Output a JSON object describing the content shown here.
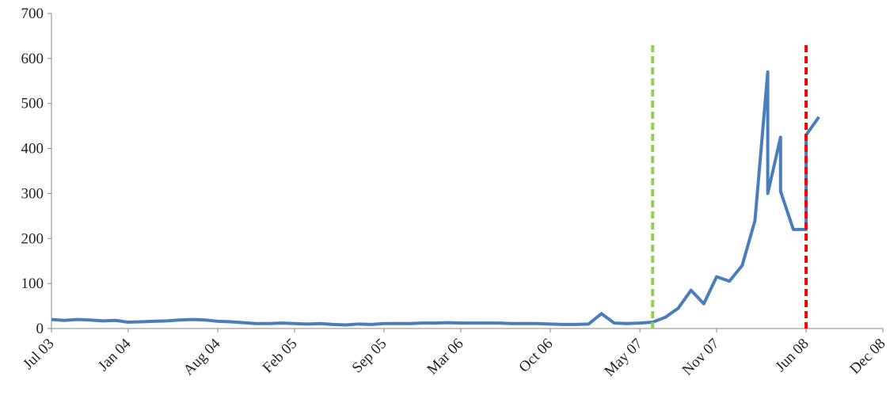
{
  "chart_data": {
    "type": "line",
    "x": [
      "2003-07",
      "2003-08",
      "2003-09",
      "2003-10",
      "2003-11",
      "2003-12",
      "2004-01",
      "2004-02",
      "2004-03",
      "2004-04",
      "2004-05",
      "2004-06",
      "2004-07",
      "2004-08",
      "2004-09",
      "2004-10",
      "2004-11",
      "2004-12",
      "2005-01",
      "2005-02",
      "2005-03",
      "2005-04",
      "2005-05",
      "2005-06",
      "2005-07",
      "2005-08",
      "2005-09",
      "2005-10",
      "2005-11",
      "2005-12",
      "2006-01",
      "2006-02",
      "2006-03",
      "2006-04",
      "2006-05",
      "2006-06",
      "2006-07",
      "2006-08",
      "2006-09",
      "2006-10",
      "2006-11",
      "2006-12",
      "2007-01",
      "2007-02",
      "2007-03",
      "2007-04",
      "2007-05",
      "2007-06",
      "2007-07",
      "2007-08",
      "2007-09",
      "2007-10",
      "2007-11",
      "2007-12",
      "2008-01",
      "2008-02",
      "2008-03",
      "2008-03",
      "2008-04",
      "2008-04",
      "2008-05",
      "2008-06",
      "2008-06",
      "2008-07"
    ],
    "series": [
      {
        "color": "#4a7ebb",
        "values": [
          20,
          18,
          20,
          19,
          17,
          18,
          14,
          15,
          16,
          17,
          19,
          20,
          19,
          16,
          15,
          13,
          11,
          11,
          12,
          11,
          10,
          11,
          9,
          8,
          10,
          9,
          11,
          11,
          11,
          12,
          12,
          13,
          12,
          12,
          12,
          12,
          11,
          11,
          11,
          10,
          9,
          9,
          10,
          33,
          12,
          11,
          12,
          14,
          25,
          45,
          85,
          55,
          115,
          105,
          140,
          240,
          570,
          300,
          425,
          305,
          220,
          220,
          430,
          470
        ]
      }
    ],
    "xlim": [
      "2003-07",
      "2008-12"
    ],
    "xticks": [
      {
        "value": "2003-07",
        "label": "Jul 03"
      },
      {
        "value": "2004-01",
        "label": "Jan 04"
      },
      {
        "value": "2004-08",
        "label": "Aug 04"
      },
      {
        "value": "2005-02",
        "label": "Feb 05"
      },
      {
        "value": "2005-09",
        "label": "Sep 05"
      },
      {
        "value": "2006-03",
        "label": "Mar 06"
      },
      {
        "value": "2006-10",
        "label": "Oct 06"
      },
      {
        "value": "2007-05",
        "label": "May 07"
      },
      {
        "value": "2007-11",
        "label": "Nov 07"
      },
      {
        "value": "2008-06",
        "label": "Jun 08"
      },
      {
        "value": "2008-12",
        "label": "Dec 08"
      }
    ],
    "ylim": [
      0,
      700
    ],
    "yticks": [
      0,
      100,
      200,
      300,
      400,
      500,
      600,
      700
    ],
    "vlines": [
      {
        "x": "2007-06",
        "color": "#92d050"
      },
      {
        "x": "2008-06",
        "color": "#ff0000"
      }
    ]
  }
}
